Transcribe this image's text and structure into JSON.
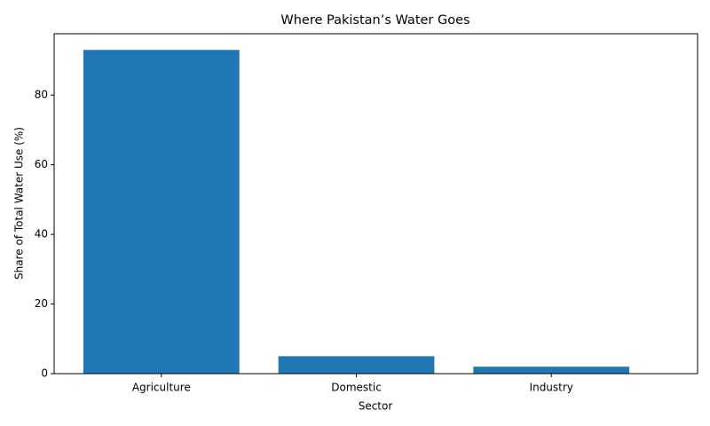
{
  "chart_data": {
    "type": "bar",
    "title": "Where Pakistan’s Water Goes",
    "x_label": "Sector",
    "y_label": "Share of Total Water Use (%)",
    "categories": [
      "Agriculture",
      "Domestic",
      "Industry"
    ],
    "values": [
      93,
      5,
      2
    ],
    "color": "#1f77b4",
    "ylim": [
      0,
      97.65
    ],
    "yticks": [
      0,
      20,
      40,
      60,
      80
    ],
    "grid": false
  }
}
